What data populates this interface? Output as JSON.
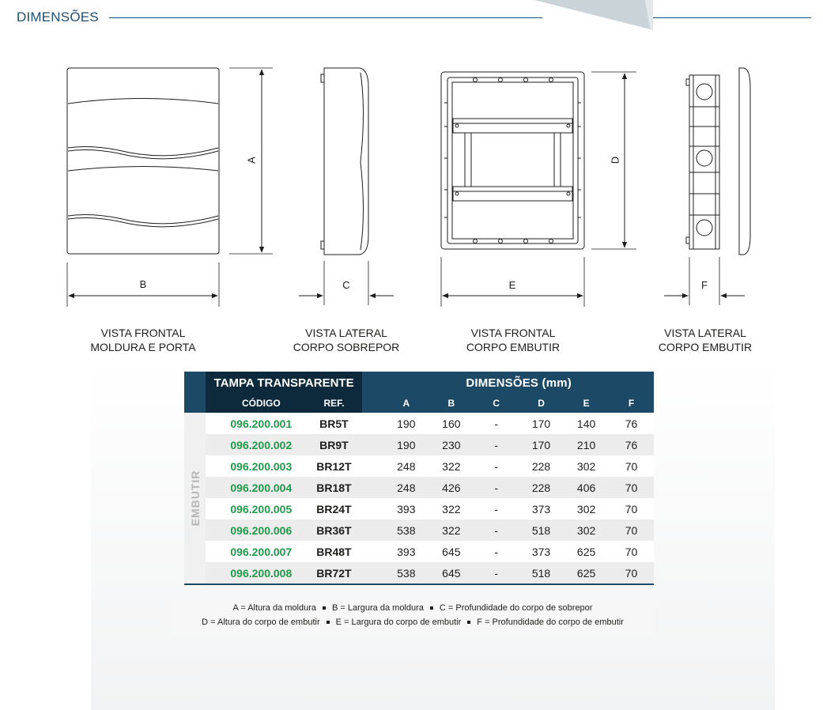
{
  "header": {
    "title": "DIMENSÕES"
  },
  "dimension_letters": {
    "a": "A",
    "b": "B",
    "c": "C",
    "d": "D",
    "e": "E",
    "f": "F"
  },
  "views": [
    {
      "line1": "VISTA FRONTAL",
      "line2": "MOLDURA E PORTA"
    },
    {
      "line1": "VISTA LATERAL",
      "line2": "CORPO SOBREPOR"
    },
    {
      "line1": "VISTA FRONTAL",
      "line2": "CORPO EMBUTIR"
    },
    {
      "line1": "VISTA LATERAL",
      "line2": "CORPO EMBUTIR"
    }
  ],
  "table": {
    "group_title": "TAMPA TRANSPARENTE",
    "dims_title": "DIMENSÕES (mm)",
    "col_code": "CÓDIGO",
    "col_ref": "REF.",
    "col_dims": [
      "A",
      "B",
      "C",
      "D",
      "E",
      "F"
    ],
    "side_label": "EMBUTIR",
    "rows": [
      {
        "code": "096.200.001",
        "ref": "BR5T",
        "a": "190",
        "b": "160",
        "c": "-",
        "d": "170",
        "e": "140",
        "f": "76"
      },
      {
        "code": "096.200.002",
        "ref": "BR9T",
        "a": "190",
        "b": "230",
        "c": "-",
        "d": "170",
        "e": "210",
        "f": "76"
      },
      {
        "code": "096.200.003",
        "ref": "BR12T",
        "a": "248",
        "b": "322",
        "c": "-",
        "d": "228",
        "e": "302",
        "f": "70"
      },
      {
        "code": "096.200.004",
        "ref": "BR18T",
        "a": "248",
        "b": "426",
        "c": "-",
        "d": "228",
        "e": "406",
        "f": "70"
      },
      {
        "code": "096.200.005",
        "ref": "BR24T",
        "a": "393",
        "b": "322",
        "c": "-",
        "d": "373",
        "e": "302",
        "f": "70"
      },
      {
        "code": "096.200.006",
        "ref": "BR36T",
        "a": "538",
        "b": "322",
        "c": "-",
        "d": "518",
        "e": "302",
        "f": "70"
      },
      {
        "code": "096.200.007",
        "ref": "BR48T",
        "a": "393",
        "b": "645",
        "c": "-",
        "d": "373",
        "e": "625",
        "f": "70"
      },
      {
        "code": "096.200.008",
        "ref": "BR72T",
        "a": "538",
        "b": "645",
        "c": "-",
        "d": "518",
        "e": "625",
        "f": "70"
      }
    ]
  },
  "legend": {
    "line1": [
      "A = Altura da moldura",
      "B = Largura da moldura",
      "C = Profundidade do corpo de sobrepor"
    ],
    "line2": [
      "D = Altura do corpo de embutir",
      "E = Largura do corpo de embutir",
      "F = Profundidade do corpo de embutir"
    ]
  },
  "colors": {
    "heading_blue": "#1f4d6e",
    "table_header": "#1c4a66",
    "table_header_dark": "#0d2a3d",
    "code_green": "#1f9a48"
  }
}
